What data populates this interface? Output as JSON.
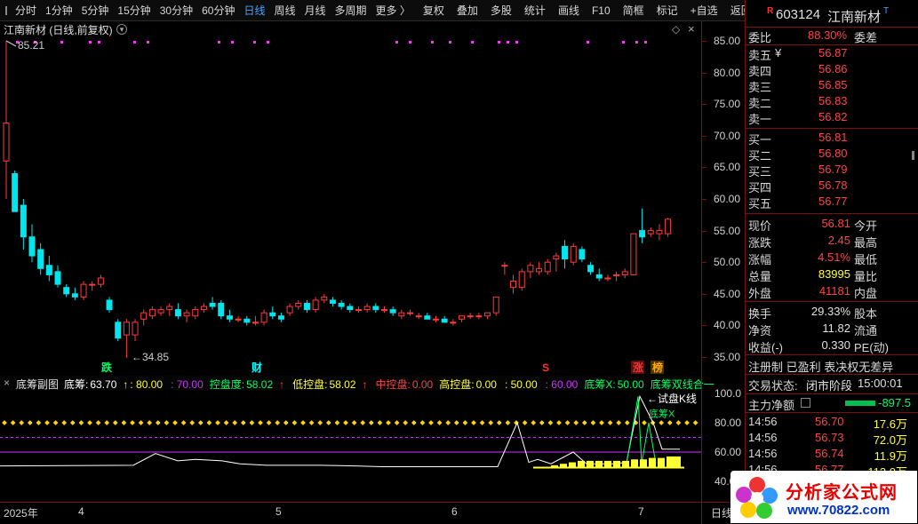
{
  "toolbar": {
    "periods": [
      "分时",
      "1分钟",
      "5分钟",
      "15分钟",
      "30分钟",
      "60分钟",
      "日线",
      "周线",
      "月线",
      "多周期",
      "更多 〉"
    ],
    "active": "日线",
    "tools": [
      "复权",
      "叠加",
      "多股",
      "统计",
      "画线",
      "F10",
      "简框",
      "标记",
      "+自选",
      "返回"
    ]
  },
  "main": {
    "title": "江南新材 (日线,前复权)",
    "high_label": "85.21",
    "low_label": "34.85",
    "markers": [
      {
        "text": "跌",
        "color": "#00ff66"
      },
      {
        "text": "财",
        "color": "#00ffff"
      },
      {
        "text": "S",
        "color": "#ff3030"
      },
      {
        "text": "涨",
        "color": "#ff3030"
      },
      {
        "text": "榜",
        "color": "#ffaa00"
      }
    ],
    "yticks": [
      "85.00",
      "80.00",
      "75.00",
      "70.00",
      "65.00",
      "60.00",
      "55.00",
      "50.00",
      "45.00",
      "40.00",
      "35.00"
    ]
  },
  "sub": {
    "title": "底筹副图",
    "items": [
      {
        "label": "底筹:",
        "value": "63.70",
        "color": "#ffffff"
      },
      {
        "label": "↑",
        "value": ": 80.00",
        "color": "#ffff33"
      },
      {
        "label": "",
        "value": ": 70.00",
        "color": "#cc33ff"
      },
      {
        "label": "控盘度:",
        "value": "58.02",
        "color": "#00ff66"
      },
      {
        "label": "↑",
        "value": "",
        "color": "#ff4040"
      },
      {
        "label": "低控盘:",
        "value": "58.02",
        "color": "#ffff33"
      },
      {
        "label": "↑",
        "value": "",
        "color": "#ff4040"
      },
      {
        "label": "中控盘:",
        "value": "0.00",
        "color": "#ff4040"
      },
      {
        "label": "高控盘:",
        "value": "0.00",
        "color": "#ffff33"
      },
      {
        "label": "",
        "value": ": 50.00",
        "color": "#ffff33"
      },
      {
        "label": "",
        "value": ": 60.00",
        "color": "#cc33ff"
      },
      {
        "label": "底筹X:",
        "value": "50.00",
        "color": "#00ff66"
      },
      {
        "label": "底筹双线合一",
        "value": "",
        "color": "#00ff66"
      }
    ],
    "annotations": {
      "trial": "试盘K线",
      "dichou": "底筹X"
    },
    "yticks": [
      "100.0",
      "80.00",
      "60.00",
      "40.00"
    ]
  },
  "xaxis": {
    "labels": [
      "2025年",
      "4",
      "5",
      "6",
      "7"
    ],
    "right": "日线"
  },
  "quote": {
    "code": "603124",
    "name": "江南新材",
    "weibi_label": "委比",
    "weibi": "88.30%",
    "weicha_label": "委差",
    "asks": [
      {
        "label": "卖五",
        "flag": "¥",
        "price": "56.87"
      },
      {
        "label": "卖四",
        "price": "56.86"
      },
      {
        "label": "卖三",
        "price": "56.85"
      },
      {
        "label": "卖二",
        "price": "56.83"
      },
      {
        "label": "卖一",
        "price": "56.82"
      }
    ],
    "bids": [
      {
        "label": "买一",
        "price": "56.81"
      },
      {
        "label": "买二",
        "price": "56.80"
      },
      {
        "label": "买三",
        "price": "56.79"
      },
      {
        "label": "买四",
        "price": "56.78"
      },
      {
        "label": "买五",
        "price": "56.77"
      }
    ],
    "stats": [
      {
        "l": "现价",
        "v": "56.81",
        "l2": "今开"
      },
      {
        "l": "涨跌",
        "v": "2.45",
        "l2": "最高"
      },
      {
        "l": "涨幅",
        "v": "4.51%",
        "l2": "最低"
      },
      {
        "l": "总量",
        "v": "83995",
        "l2": "量比",
        "vcolor": "#ffff33"
      },
      {
        "l": "外盘",
        "v": "41181",
        "l2": "内盘"
      }
    ],
    "stats2": [
      {
        "l": "换手",
        "v": "29.33%",
        "l2": "股本"
      },
      {
        "l": "净资",
        "v": "11.82",
        "l2": "流通"
      },
      {
        "l": "收益(-)",
        "v": "0.330",
        "l2": "PE(动)"
      }
    ],
    "tags": "注册制 已盈利 表决权无差异",
    "status_label": "交易状态:",
    "status": "闭市阶段",
    "time": "15:00:01",
    "net_label": "主力净额",
    "net": "-897.5",
    "ticks": [
      {
        "t": "14:56",
        "p": "56.70",
        "q": "17.6万"
      },
      {
        "t": "14:56",
        "p": "56.73",
        "q": "72.0万"
      },
      {
        "t": "14:56",
        "p": "56.74",
        "q": "11.9万"
      },
      {
        "t": "14:56",
        "p": "56.77",
        "q": "113.0万"
      }
    ]
  },
  "logo": {
    "title": "分析家公式网",
    "url": "www.70822.com"
  }
}
